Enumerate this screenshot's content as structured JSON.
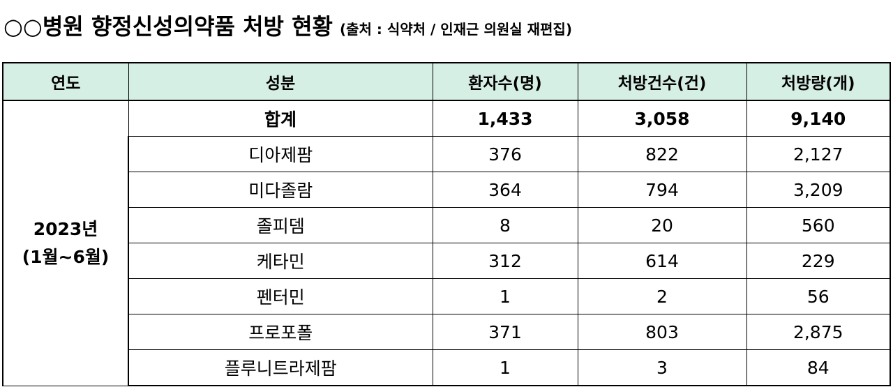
{
  "title": {
    "main": "○○병원 향정신성의약품 처방 현황",
    "source": "(출처 : 식약처 / 인재근 의원실 재편집)"
  },
  "table": {
    "headers": [
      "연도",
      "성분",
      "환자수(명)",
      "처방건수(건)",
      "처방량(개)"
    ],
    "year_line1": "2023년",
    "year_line2": "(1월~6월)",
    "rows": [
      {
        "name": "합계",
        "patients": "1,433",
        "cases": "3,058",
        "quantity": "9,140"
      },
      {
        "name": "디아제팜",
        "patients": "376",
        "cases": "822",
        "quantity": "2,127"
      },
      {
        "name": "미다졸람",
        "patients": "364",
        "cases": "794",
        "quantity": "3,209"
      },
      {
        "name": "졸피뎀",
        "patients": "8",
        "cases": "20",
        "quantity": "560"
      },
      {
        "name": "케타민",
        "patients": "312",
        "cases": "614",
        "quantity": "229"
      },
      {
        "name": "펜터민",
        "patients": "1",
        "cases": "2",
        "quantity": "56"
      },
      {
        "name": "프로포폴",
        "patients": "371",
        "cases": "803",
        "quantity": "2,875"
      },
      {
        "name": "플루니트라제팜",
        "patients": "1",
        "cases": "3",
        "quantity": "84"
      }
    ]
  },
  "colors": {
    "header_bg": "#d6efe5",
    "border": "#000000"
  }
}
